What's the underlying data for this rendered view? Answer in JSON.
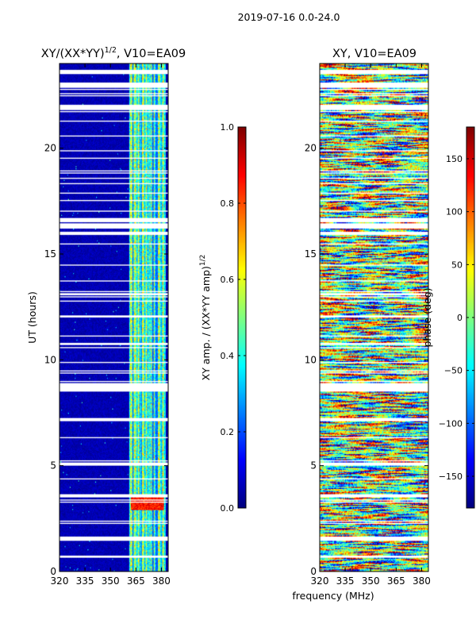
{
  "figure": {
    "suptitle": "2019-07-16 0.0-24.0",
    "shared_xlabel": "frequency (MHz)"
  },
  "chart_data": [
    {
      "type": "heatmap",
      "title_main": "XY/(XX*YY)",
      "title_exp": "1/2",
      "title_tail": ", V10=EA09",
      "xlabel": "frequency (MHz)",
      "ylabel": "UT (hours)",
      "xlim": [
        320,
        384
      ],
      "ylim": [
        0,
        24
      ],
      "xticks": [
        320,
        335,
        350,
        365,
        380
      ],
      "yticks": [
        0,
        5,
        10,
        15,
        20
      ],
      "colorbar": {
        "label_main": "XY amp. / (XX*YY amp)",
        "label_exp": "1/2",
        "range": [
          0.0,
          1.0
        ],
        "ticks": [
          "0.0",
          "0.2",
          "0.4",
          "0.6",
          "0.8",
          "1.0"
        ],
        "tick_values": [
          0.0,
          0.2,
          0.4,
          0.6,
          0.8,
          1.0
        ],
        "colormap": "jet"
      },
      "description": "Background near 0 from 320-361 MHz; elevated amplitude (0.3-0.7) striped channels from about 361-382 MHz; hot spot (~0.85) near 3 UT in 362-381 MHz"
    },
    {
      "type": "heatmap",
      "title_main": "XY, V10=EA09",
      "xlabel": "frequency (MHz)",
      "ylabel": "",
      "xlim": [
        320,
        384
      ],
      "ylim": [
        0,
        24
      ],
      "xticks": [
        320,
        335,
        350,
        365,
        380
      ],
      "yticks": [
        0,
        5,
        10,
        15,
        20
      ],
      "colorbar": {
        "label": "phase (deg)",
        "range": [
          -180,
          180
        ],
        "ticks": [
          "−150",
          "−100",
          "−50",
          "0",
          "50",
          "100",
          "150"
        ],
        "tick_values": [
          -150,
          -100,
          -50,
          0,
          50,
          100,
          150
        ],
        "colormap": "jet"
      },
      "description": "Noisy phase values spanning -180 to 180 degrees across all frequencies and times"
    }
  ],
  "colors": {
    "background": "#ffffff",
    "flagged": "#ffffff",
    "axes": "#000000"
  }
}
